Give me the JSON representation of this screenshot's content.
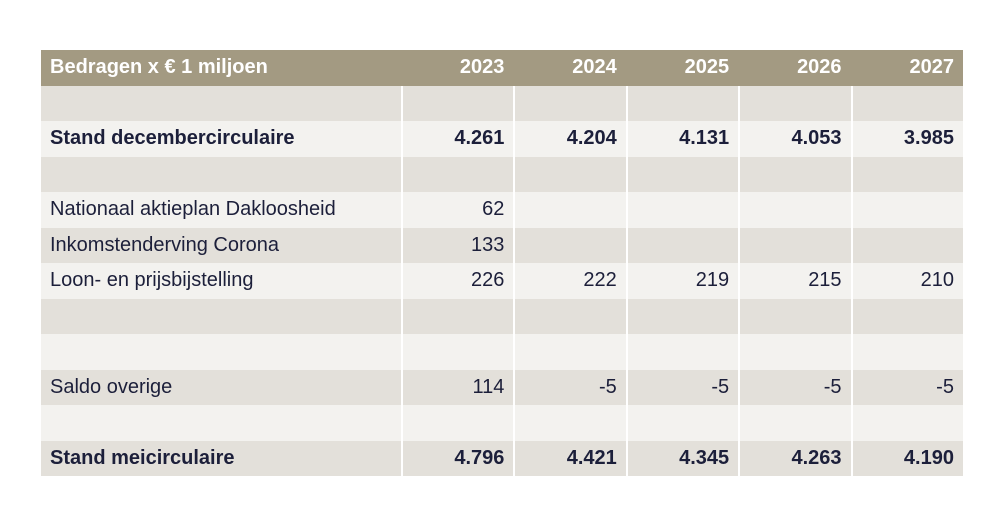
{
  "table": {
    "header": {
      "label": "Bedragen x € 1 miljoen",
      "years": [
        "2023",
        "2024",
        "2025",
        "2026",
        "2027"
      ]
    },
    "rows": [
      {
        "label": "",
        "values": [
          "",
          "",
          "",
          "",
          ""
        ],
        "bold": false
      },
      {
        "label": "Stand decembercirculaire",
        "values": [
          "4.261",
          "4.204",
          "4.131",
          "4.053",
          "3.985"
        ],
        "bold": true
      },
      {
        "label": "",
        "values": [
          "",
          "",
          "",
          "",
          ""
        ],
        "bold": false
      },
      {
        "label": "Nationaal aktieplan Dakloosheid",
        "values": [
          "62",
          "",
          "",
          "",
          ""
        ],
        "bold": false
      },
      {
        "label": "Inkomstenderving Corona",
        "values": [
          "133",
          "",
          "",
          "",
          ""
        ],
        "bold": false
      },
      {
        "label": "Loon- en prijsbijstelling",
        "values": [
          "226",
          "222",
          "219",
          "215",
          "210"
        ],
        "bold": false
      },
      {
        "label": "",
        "values": [
          "",
          "",
          "",
          "",
          ""
        ],
        "bold": false
      },
      {
        "label": "",
        "values": [
          "",
          "",
          "",
          "",
          ""
        ],
        "bold": false
      },
      {
        "label": "Saldo overige",
        "values": [
          "114",
          "-5",
          "-5",
          "-5",
          "-5"
        ],
        "bold": false
      },
      {
        "label": "",
        "values": [
          "",
          "",
          "",
          "",
          ""
        ],
        "bold": false
      },
      {
        "label": "Stand meicirculaire",
        "values": [
          "4.796",
          "4.421",
          "4.345",
          "4.263",
          "4.190"
        ],
        "bold": true
      }
    ]
  }
}
